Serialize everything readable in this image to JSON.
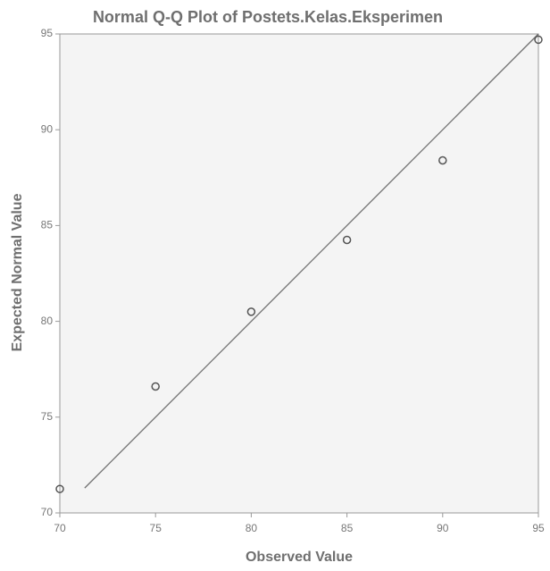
{
  "chart_data": {
    "type": "scatter",
    "title": "Normal Q-Q Plot of Postets.Kelas.Eksperimen",
    "x_label": "Observed Value",
    "y_label": "Expected Normal Value",
    "x": [
      70,
      75,
      80,
      85,
      90,
      95
    ],
    "values": [
      71.25,
      76.6,
      80.5,
      84.25,
      88.4,
      94.7
    ],
    "color": "#555555",
    "reference_line": {
      "x": [
        71.3,
        95
      ],
      "values": [
        71.3,
        95
      ],
      "color": "#707070"
    },
    "xlim": [
      70,
      95
    ],
    "ylim": [
      70,
      95
    ],
    "xticks": [
      70,
      75,
      80,
      85,
      90,
      95
    ],
    "yticks": [
      70,
      75,
      80,
      85,
      90,
      95
    ]
  }
}
